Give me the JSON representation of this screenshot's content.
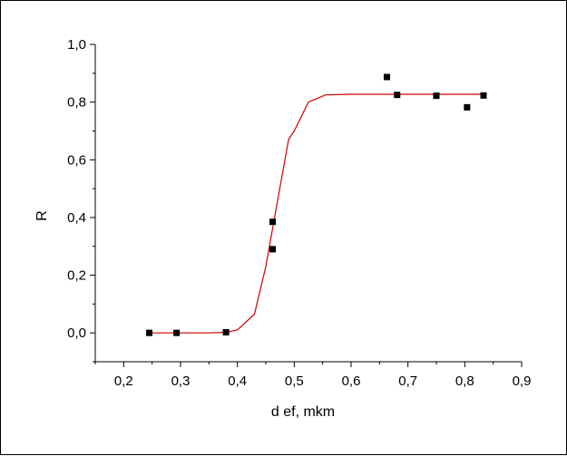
{
  "chart_data": {
    "type": "scatter",
    "title": "",
    "xlabel": "d ef, mkm",
    "ylabel": "R",
    "xlim": [
      0.15,
      0.9
    ],
    "ylim": [
      -0.1,
      1.0
    ],
    "xticks": [
      0.2,
      0.3,
      0.4,
      0.5,
      0.6,
      0.7,
      0.8,
      0.9
    ],
    "xtick_labels": [
      "0,2",
      "0,3",
      "0,4",
      "0,5",
      "0,6",
      "0,7",
      "0,8",
      "0,9"
    ],
    "yticks": [
      0.0,
      0.2,
      0.4,
      0.6,
      0.8,
      1.0
    ],
    "ytick_labels": [
      "0,0",
      "0,2",
      "0,4",
      "0,6",
      "0,8",
      "1,0"
    ],
    "grid": false,
    "legend": "none",
    "colors": {
      "points": "#000000",
      "fit": "#cc0000",
      "axis": "#000000"
    },
    "series": [
      {
        "kind": "points",
        "x": [
          0.245,
          0.293,
          0.38,
          0.462,
          0.462,
          0.663,
          0.681,
          0.75,
          0.804,
          0.833
        ],
        "y": [
          0.0,
          0.0,
          0.002,
          0.385,
          0.29,
          0.887,
          0.825,
          0.822,
          0.782,
          0.823
        ]
      },
      {
        "kind": "fit-line",
        "x": [
          0.245,
          0.3,
          0.35,
          0.38,
          0.4,
          0.43,
          0.45,
          0.47,
          0.49,
          0.5,
          0.525,
          0.555,
          0.6,
          0.7,
          0.8,
          0.833
        ],
        "y": [
          0.0,
          0.0,
          0.0,
          0.002,
          0.01,
          0.065,
          0.23,
          0.45,
          0.67,
          0.7,
          0.8,
          0.825,
          0.827,
          0.827,
          0.827,
          0.827
        ]
      }
    ]
  }
}
